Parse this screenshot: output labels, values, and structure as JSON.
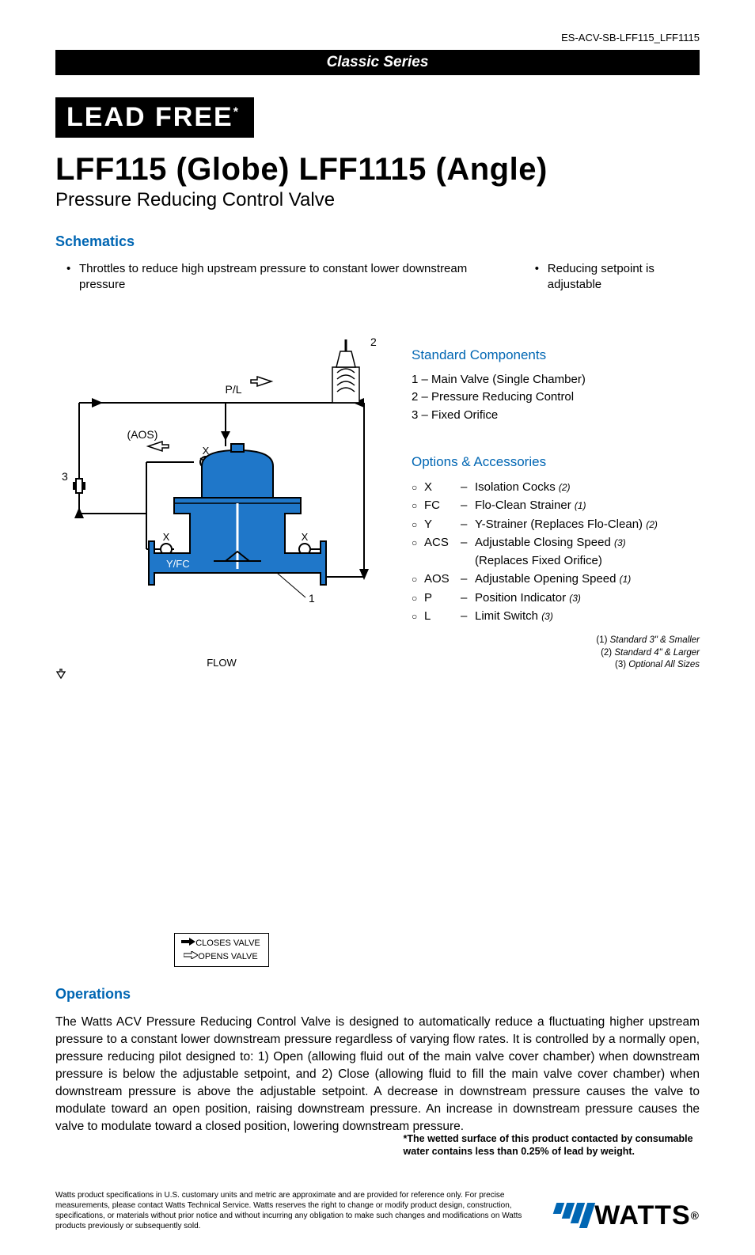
{
  "doc_id": "ES-ACV-SB-LFF115_LFF1115",
  "series_bar": "Classic Series",
  "leadfree": "LEAD FREE",
  "leadfree_star": "*",
  "title": "LFF115 (Globe) LFF1115 (Angle)",
  "subtitle": "Pressure Reducing Control Valve",
  "schematics_heading": "Schematics",
  "bullets": {
    "left": "Throttles to reduce high upstream pressure to constant lower downstream pressure",
    "right": "Reducing setpoint is adjustable"
  },
  "schematic": {
    "labels": {
      "two": "2",
      "pl": "P/L",
      "aos": "(AOS)",
      "x1": "X",
      "x2": "X",
      "x3": "X",
      "three": "3",
      "yfc": "Y/FC",
      "one": "1",
      "flow": "FLOW",
      "closes": "CLOSES VALVE",
      "opens": "OPENS VALVE"
    },
    "colors": {
      "valve_fill": "#1f77c9",
      "line": "#000000"
    }
  },
  "std_heading": "Standard Components",
  "std_items": [
    "1 – Main Valve (Single Chamber)",
    "2 – Pressure Reducing Control",
    "3 – Fixed Orifice"
  ],
  "opt_heading": "Options & Accessories",
  "options": [
    {
      "code": "X",
      "desc": "Isolation Cocks",
      "note": "(2)"
    },
    {
      "code": "FC",
      "desc": "Flo-Clean Strainer",
      "note": "(1)"
    },
    {
      "code": "Y",
      "desc": "Y-Strainer (Replaces Flo-Clean)",
      "note": "(2)"
    },
    {
      "code": "ACS",
      "desc": "Adjustable Closing Speed",
      "note": "(3)"
    },
    {
      "code": "",
      "desc": "(Replaces Fixed Orifice)",
      "note": "",
      "cont": true
    },
    {
      "code": "AOS",
      "desc": "Adjustable Opening Speed",
      "note": "(1)"
    },
    {
      "code": "P",
      "desc": "Position Indicator",
      "note": "(3)"
    },
    {
      "code": "L",
      "desc": "Limit Switch",
      "note": "(3)"
    }
  ],
  "footnotes": [
    {
      "p": "(1)",
      "t": "Standard 3\" & Smaller"
    },
    {
      "p": "(2)",
      "t": "Standard 4\" & Larger"
    },
    {
      "p": "(3)",
      "t": "Optional All Sizes"
    }
  ],
  "ops_heading": "Operations",
  "ops_body": "The Watts ACV Pressure Reducing Control Valve is designed to automatically reduce a fluctuating higher upstream pressure to a constant lower downstream pressure regardless of varying flow rates.  It is controlled by a normally open, pressure reducing pilot designed to: 1) Open (allowing fluid out of the main valve cover chamber) when downstream pressure is below the adjustable setpoint, and 2) Close (allowing fluid to fill the main valve cover chamber) when downstream pressure is above the adjustable setpoint.  A decrease in downstream pressure causes the valve to modulate toward an open position, raising downstream pressure.  An increase in downstream pressure causes the valve to modulate toward a closed position, lowering downstream pressure.",
  "star_note": "*The wetted surface of this product contacted by consumable water contains less than 0.25% of lead by weight.",
  "disclaimer": "Watts product specifications in U.S. customary units and metric are approximate and are provided for reference only. For precise measurements, please contact Watts Technical Service. Watts reserves the right to change or modify product design, construction, specifications, or materials without prior notice and without incurring any obligation to make such changes and modifications on Watts products previously or subsequently sold.",
  "logo_text": "WATTS",
  "colors": {
    "brand_blue": "#0066b3",
    "black": "#000000"
  }
}
